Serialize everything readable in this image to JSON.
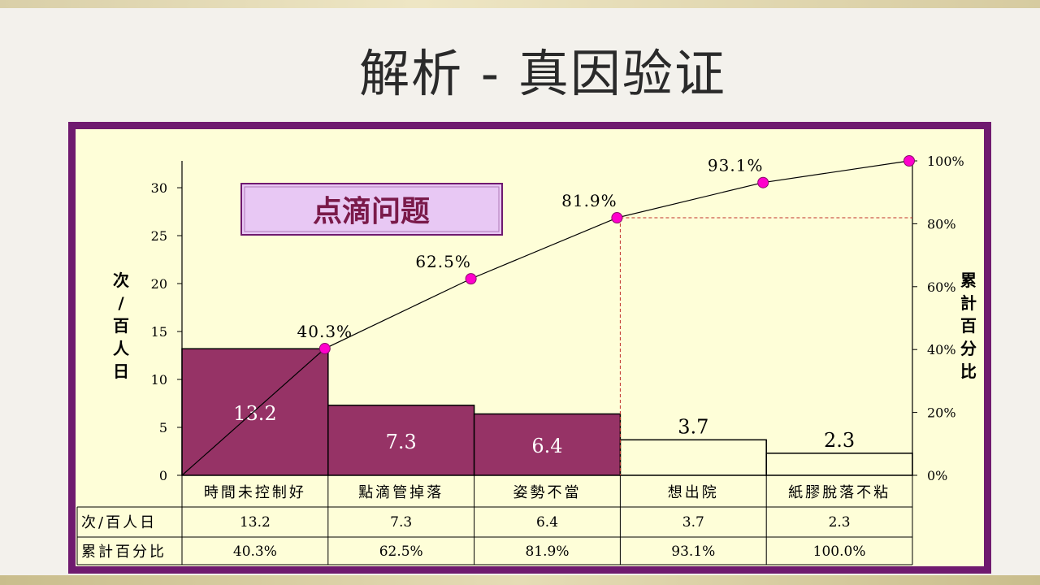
{
  "slide": {
    "title": "解析 - 真因验证"
  },
  "chart_data": {
    "type": "bar",
    "title": "点滴问题",
    "categories": [
      "時間未控制好",
      "點滴管掉落",
      "姿勢不當",
      "想出院",
      "紙膠脫落不粘"
    ],
    "values": [
      13.2,
      7.3,
      6.4,
      3.7,
      2.3
    ],
    "value_labels": [
      "13.2",
      "7.3",
      "6.4",
      "3.7",
      "2.3"
    ],
    "cumulative_percent": [
      40.3,
      62.5,
      81.9,
      93.1,
      100.0
    ],
    "cumulative_labels": [
      "40.3%",
      "62.5%",
      "81.9%",
      "93.1%",
      ""
    ],
    "ylabel": "次/百人日",
    "y2label": "累計百分比",
    "ylim": [
      0,
      32.8
    ],
    "yticks": [
      0,
      5,
      10,
      15,
      20,
      25,
      30
    ],
    "y2lim": [
      0,
      100
    ],
    "y2ticks": [
      "0%",
      "20%",
      "40%",
      "60%",
      "80%",
      "100%"
    ],
    "highlighted_bars": 3,
    "highlight_cutoff_percent": 81.9,
    "colors": {
      "bar_fill": "#963366",
      "line": "#000000",
      "marker": "#ff00cc",
      "cutoff_line": "#c0302a",
      "title_box": "#e8c8f4",
      "title_text": "#7a1a4a",
      "frame": "#6f1a6f",
      "plot_bg": "#fefed8"
    },
    "table": {
      "row_labels": [
        "次/百人日",
        "累計百分比"
      ],
      "rows": [
        [
          "13.2",
          "7.3",
          "6.4",
          "3.7",
          "2.3"
        ],
        [
          "40.3%",
          "62.5%",
          "81.9%",
          "93.1%",
          "100.0%"
        ]
      ]
    }
  }
}
